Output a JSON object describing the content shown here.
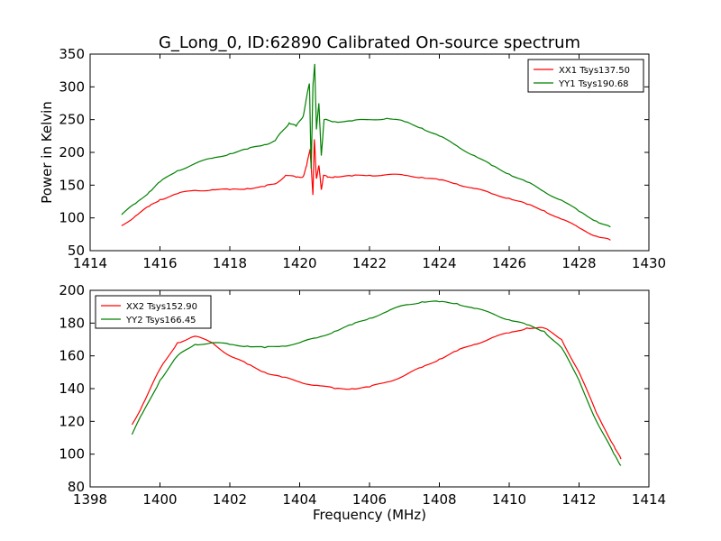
{
  "figure_title": "G_Long_0, ID:62890 Calibrated On-source spectrum",
  "chart_data": [
    {
      "type": "line",
      "ylabel": "Power in Kelvin",
      "xlabel": "",
      "xlim": [
        1414,
        1430
      ],
      "ylim": [
        50,
        350
      ],
      "xticks": [
        1414,
        1416,
        1418,
        1420,
        1422,
        1424,
        1426,
        1428,
        1430
      ],
      "yticks": [
        50,
        100,
        150,
        200,
        250,
        300,
        350
      ],
      "legend_position": "top-right",
      "series": [
        {
          "name": "XX1 Tsys137.50",
          "color": "#ff0000",
          "x": [
            1414.9,
            1415.3,
            1415.7,
            1416.0,
            1416.5,
            1417.0,
            1417.5,
            1418.0,
            1418.5,
            1419.0,
            1419.3,
            1419.6,
            1419.9,
            1420.1,
            1420.2,
            1420.3,
            1420.38,
            1420.42,
            1420.48,
            1420.55,
            1420.62,
            1420.68,
            1420.8,
            1421.0,
            1421.5,
            1422.0,
            1422.5,
            1423.0,
            1423.5,
            1424.0,
            1424.5,
            1425.0,
            1425.5,
            1426.0,
            1426.5,
            1427.0,
            1427.5,
            1428.0,
            1428.5,
            1428.9
          ],
          "y": [
            88,
            103,
            118,
            128,
            137,
            142,
            143,
            143,
            145,
            148,
            152,
            165,
            162,
            163,
            180,
            205,
            135,
            220,
            160,
            180,
            143,
            165,
            162,
            163,
            164,
            165,
            166,
            165,
            162,
            158,
            152,
            145,
            137,
            130,
            121,
            111,
            98,
            85,
            72,
            66
          ]
        },
        {
          "name": "YY1 Tsys190.68",
          "color": "#008000",
          "x": [
            1414.9,
            1415.3,
            1415.7,
            1416.0,
            1416.5,
            1417.0,
            1417.5,
            1418.0,
            1418.5,
            1419.0,
            1419.3,
            1419.5,
            1419.7,
            1419.9,
            1420.1,
            1420.2,
            1420.28,
            1420.33,
            1420.38,
            1420.43,
            1420.48,
            1420.55,
            1420.62,
            1420.7,
            1421.0,
            1421.5,
            1422.0,
            1422.5,
            1423.0,
            1423.5,
            1424.0,
            1424.5,
            1425.0,
            1425.5,
            1426.0,
            1426.5,
            1427.0,
            1427.5,
            1428.0,
            1428.5,
            1428.9
          ],
          "y": [
            105,
            122,
            140,
            155,
            172,
            183,
            191,
            198,
            205,
            212,
            218,
            232,
            245,
            240,
            255,
            285,
            305,
            175,
            300,
            335,
            235,
            275,
            195,
            250,
            247,
            248,
            250,
            252,
            247,
            237,
            225,
            210,
            195,
            180,
            167,
            155,
            140,
            127,
            110,
            95,
            86
          ]
        }
      ]
    },
    {
      "type": "line",
      "ylabel": "",
      "xlabel": "Frequency (MHz)",
      "xlim": [
        1398,
        1414
      ],
      "ylim": [
        80,
        200
      ],
      "xticks": [
        1398,
        1400,
        1402,
        1404,
        1406,
        1408,
        1410,
        1412,
        1414
      ],
      "yticks": [
        80,
        100,
        120,
        140,
        160,
        180,
        200
      ],
      "legend_position": "top-left",
      "series": [
        {
          "name": "XX2 Tsys152.90",
          "color": "#ff0000",
          "x": [
            1399.2,
            1399.5,
            1400.0,
            1400.5,
            1401.0,
            1401.5,
            1402.0,
            1402.5,
            1403.0,
            1403.5,
            1404.0,
            1404.5,
            1405.0,
            1405.5,
            1406.0,
            1406.5,
            1407.0,
            1407.5,
            1408.0,
            1408.5,
            1409.0,
            1409.5,
            1410.0,
            1410.5,
            1411.0,
            1411.5,
            1412.0,
            1412.5,
            1413.0,
            1413.2
          ],
          "y": [
            118,
            130,
            152,
            168,
            172,
            168,
            160,
            155,
            150,
            147,
            144,
            142,
            140,
            140,
            141,
            144,
            148,
            153,
            158,
            163,
            167,
            171,
            174,
            177,
            177,
            170,
            150,
            125,
            105,
            97
          ]
        },
        {
          "name": "YY2 Tsys166.45",
          "color": "#008000",
          "x": [
            1399.2,
            1399.5,
            1400.0,
            1400.5,
            1401.0,
            1401.5,
            1402.0,
            1402.5,
            1403.0,
            1403.5,
            1404.0,
            1404.5,
            1405.0,
            1405.5,
            1406.0,
            1406.5,
            1407.0,
            1407.5,
            1408.0,
            1408.5,
            1409.0,
            1409.5,
            1410.0,
            1410.5,
            1411.0,
            1411.5,
            1412.0,
            1412.5,
            1413.0,
            1413.2
          ],
          "y": [
            112,
            125,
            145,
            160,
            167,
            168,
            167,
            166,
            165,
            166,
            168,
            171,
            175,
            179,
            183,
            187,
            191,
            193,
            193,
            192,
            189,
            186,
            182,
            179,
            175,
            165,
            145,
            120,
            100,
            93
          ]
        }
      ]
    }
  ]
}
